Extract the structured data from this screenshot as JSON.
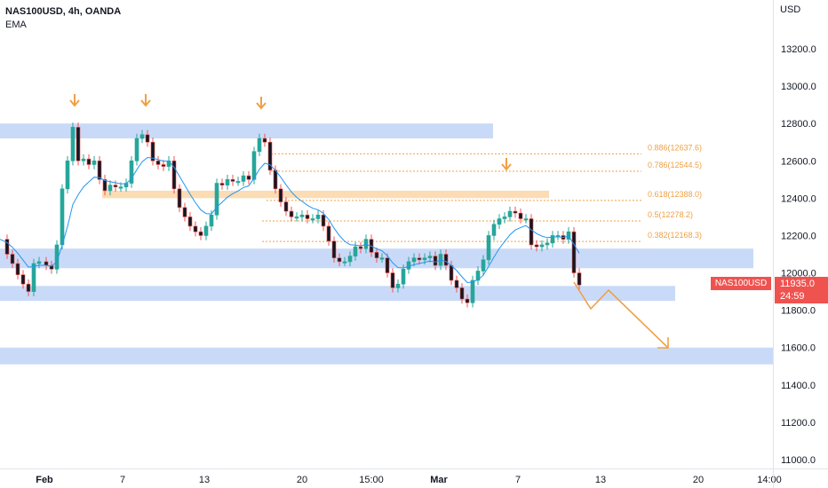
{
  "header": {
    "symbol_line": "NAS100USD, 4h, OANDA",
    "indicator": "EMA"
  },
  "price_axis": {
    "currency": "USD",
    "ticks": [
      "13200.0",
      "13000.0",
      "12800.0",
      "12600.0",
      "12400.0",
      "12200.0",
      "12000.0",
      "11800.0",
      "11600.0",
      "11400.0",
      "11200.0",
      "11000.0"
    ]
  },
  "time_axis": {
    "ticks": [
      "Feb",
      "7",
      "13",
      "20",
      "15:00",
      "Mar",
      "7",
      "13",
      "20",
      "14:00"
    ]
  },
  "last_price": {
    "symbol": "NAS100USD",
    "value": "11935.0",
    "countdown": "24:59",
    "color": "#ef5350"
  },
  "fibonacci": {
    "levels": [
      {
        "label": "0.886(12637.6)",
        "price": 12637.6
      },
      {
        "label": "0.786(12544.5)",
        "price": 12544.5
      },
      {
        "label": "0.618(12388.0)",
        "price": 12388.0
      },
      {
        "label": "0.5(12278.2)",
        "price": 12278.2
      },
      {
        "label": "0.382(12168.3)",
        "price": 12168.3
      }
    ],
    "color": "#f0a045"
  },
  "zones": [
    {
      "kind": "supply",
      "top": 12800,
      "bottom": 12720,
      "color": "#c9daf8"
    },
    {
      "kind": "resistance-orange",
      "top": 12440,
      "bottom": 12400,
      "color": "#fcdcb4"
    },
    {
      "kind": "support",
      "top": 12130,
      "bottom": 12025,
      "color": "#c9daf8"
    },
    {
      "kind": "support",
      "top": 11930,
      "bottom": 11850,
      "color": "#c9daf8"
    },
    {
      "kind": "target",
      "top": 11600,
      "bottom": 11510,
      "color": "#c9daf8"
    }
  ],
  "colors": {
    "up_candle": "#26a69a",
    "down_candle": "#ef5350",
    "body_dark": "#131722",
    "ema": "#2196f3",
    "arrow": "#f0a045"
  },
  "chart_data": {
    "type": "candlestick",
    "ylim": [
      10940,
      13400
    ],
    "series": [
      {
        "name": "EMA",
        "values": []
      }
    ]
  }
}
